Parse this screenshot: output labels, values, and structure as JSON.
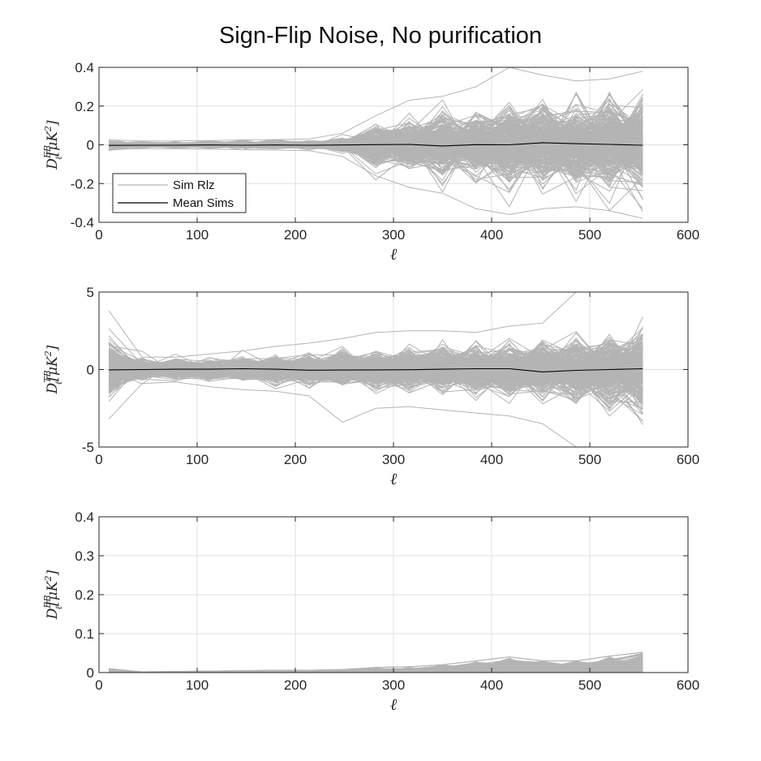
{
  "figure_title": "Sign-Flip Noise, No purification",
  "colors": {
    "sim": "#b4b4b4",
    "mean": "#000000",
    "grid": "#dfdfdf",
    "axis": "#262626"
  },
  "chart_data": [
    {
      "type": "line",
      "panel": "EB",
      "title": "",
      "xlabel": "ℓ",
      "ylabel": {
        "base": "D",
        "sup": "EB",
        "sub": "ℓ",
        "unit_prefix": "[μK",
        "unit_sup": "2",
        "unit_suffix": "]"
      },
      "xlim": [
        0,
        600
      ],
      "ylim": [
        -0.4,
        0.4
      ],
      "xticks": [
        0,
        100,
        200,
        300,
        400,
        500,
        600
      ],
      "xtick_labels": [
        "0",
        "100",
        "200",
        "300",
        "400",
        "500",
        "600"
      ],
      "yticks": [
        -0.4,
        -0.2,
        0,
        0.2,
        0.4
      ],
      "ytick_labels": [
        "-0.4",
        "-0.2",
        "0",
        "0.2",
        "0.4"
      ],
      "grid": true,
      "legend": {
        "placement": "lower-left",
        "entries": [
          "Sim Rlz",
          "Mean Sims"
        ]
      },
      "x": [
        10,
        44,
        78,
        112,
        146,
        180,
        214,
        248,
        282,
        316,
        350,
        384,
        418,
        452,
        486,
        520,
        554
      ],
      "sim_spread_2sigma": [
        0.02,
        0.012,
        0.012,
        0.014,
        0.015,
        0.016,
        0.018,
        0.03,
        0.09,
        0.11,
        0.14,
        0.15,
        0.17,
        0.18,
        0.19,
        0.2,
        0.22
      ],
      "sim_extremes": {
        "max": [
          0.025,
          0.02,
          0.02,
          0.022,
          0.025,
          0.027,
          0.03,
          0.06,
          0.15,
          0.23,
          0.25,
          0.3,
          0.4,
          0.36,
          0.33,
          0.34,
          0.38
        ],
        "min": [
          -0.025,
          -0.02,
          -0.02,
          -0.022,
          -0.025,
          -0.027,
          -0.03,
          -0.06,
          -0.16,
          -0.22,
          -0.25,
          -0.33,
          -0.36,
          -0.33,
          -0.32,
          -0.34,
          -0.38
        ]
      },
      "series": [
        {
          "name": "Sim Rlz",
          "count": 300
        },
        {
          "name": "Mean Sims",
          "values": [
            -0.003,
            -0.002,
            -0.002,
            -0.001,
            -0.002,
            -0.001,
            -0.002,
            -0.001,
            0.001,
            0.002,
            -0.006,
            0.001,
            0.0,
            0.011,
            0.006,
            0.002,
            -0.002
          ]
        }
      ]
    },
    {
      "type": "line",
      "panel": "TB",
      "title": "",
      "xlabel": "ℓ",
      "ylabel": {
        "base": "D",
        "sup": "TB",
        "sub": "ℓ",
        "unit_prefix": "[μK",
        "unit_sup": "2",
        "unit_suffix": "]"
      },
      "xlim": [
        0,
        600
      ],
      "ylim": [
        -5,
        5
      ],
      "xticks": [
        0,
        100,
        200,
        300,
        400,
        500,
        600
      ],
      "xtick_labels": [
        "0",
        "100",
        "200",
        "300",
        "400",
        "500",
        "600"
      ],
      "yticks": [
        -5,
        0,
        5
      ],
      "ytick_labels": [
        "-5",
        "0",
        "5"
      ],
      "grid": true,
      "x": [
        10,
        44,
        78,
        112,
        146,
        180,
        214,
        248,
        282,
        316,
        350,
        384,
        418,
        452,
        486,
        520,
        554
      ],
      "sim_spread_2sigma": [
        1.6,
        0.55,
        0.55,
        0.6,
        0.7,
        0.75,
        0.8,
        0.9,
        1.0,
        1.1,
        1.2,
        1.3,
        1.45,
        1.6,
        1.8,
        2.1,
        2.4
      ],
      "sim_extremes": {
        "max": [
          3.8,
          0.8,
          0.8,
          1.0,
          1.2,
          1.5,
          1.7,
          2.0,
          2.4,
          2.5,
          2.5,
          2.4,
          2.8,
          3.0,
          5.0,
          5.0,
          5.0
        ],
        "min": [
          -3.2,
          -0.9,
          -0.8,
          -1.1,
          -1.3,
          -1.4,
          -1.7,
          -3.4,
          -2.5,
          -2.4,
          -2.6,
          -2.8,
          -3.0,
          -3.5,
          -5.0,
          -5.0,
          -5.0
        ]
      },
      "series": [
        {
          "name": "Sim Rlz",
          "count": 300
        },
        {
          "name": "Mean Sims",
          "values": [
            -0.02,
            0.0,
            0.02,
            0.02,
            0.05,
            0.02,
            -0.04,
            -0.03,
            -0.02,
            -0.01,
            0.02,
            0.05,
            0.05,
            -0.15,
            -0.05,
            0.0,
            0.05
          ]
        }
      ]
    },
    {
      "type": "line",
      "panel": "BB",
      "title": "",
      "xlabel": "ℓ",
      "ylabel": {
        "base": "D",
        "sup": "BB",
        "sub": "ℓ",
        "unit_prefix": "[μK",
        "unit_sup": "2",
        "unit_suffix": "]"
      },
      "xlim": [
        0,
        600
      ],
      "ylim": [
        0,
        0.4
      ],
      "xticks": [
        0,
        100,
        200,
        300,
        400,
        500,
        600
      ],
      "xtick_labels": [
        "0",
        "100",
        "200",
        "300",
        "400",
        "500",
        "600"
      ],
      "yticks": [
        0,
        0.1,
        0.2,
        0.3,
        0.4
      ],
      "ytick_labels": [
        "0",
        "0.1",
        "0.2",
        "0.3",
        "0.4"
      ],
      "grid": true,
      "x": [
        10,
        44,
        78,
        112,
        146,
        180,
        214,
        248,
        282,
        316,
        350,
        384,
        418,
        452,
        486,
        520,
        554
      ],
      "sim_max": [
        0.01,
        0.002,
        0.003,
        0.004,
        0.005,
        0.006,
        0.006,
        0.008,
        0.013,
        0.015,
        0.02,
        0.03,
        0.04,
        0.03,
        0.03,
        0.042,
        0.052
      ],
      "series": [
        {
          "name": "Sim Rlz",
          "count": 300
        },
        {
          "name": "Mean Sims",
          "values": [
            0.0,
            0.0,
            0.0,
            0.0,
            0.0,
            0.0,
            0.0,
            0.0,
            0.0,
            0.0,
            0.0,
            0.0,
            0.0,
            0.0,
            0.0,
            0.0,
            0.0
          ]
        }
      ]
    }
  ]
}
